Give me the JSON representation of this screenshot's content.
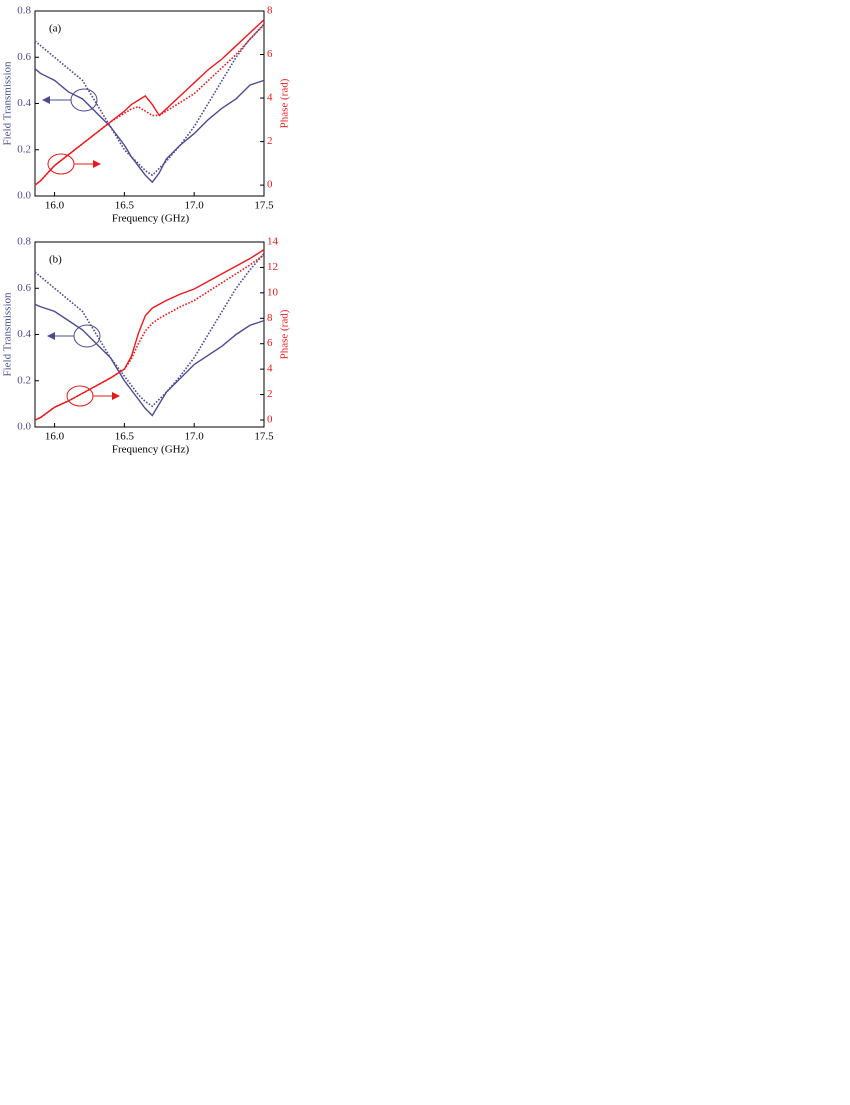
{
  "chart_data": [
    {
      "type": "line",
      "title": "(a)",
      "x_label": "Frequency (GHz)",
      "y_label": "Field Transmission",
      "y2_label": "Phase (rad)",
      "xlim": [
        15.86,
        17.5
      ],
      "xticks": [
        {
          "value": 16,
          "label": "16.0"
        },
        16.5,
        {
          "value": 17,
          "label": "17.0"
        },
        17.5
      ],
      "ylim": [
        0,
        0.8
      ],
      "yticks": [
        {
          "value": 0,
          "label": "0.0"
        },
        0.2,
        0.4,
        0.6,
        0.8
      ],
      "y2lim": [
        -0.5,
        8
      ],
      "y2ticks": [
        0,
        2,
        4,
        6,
        8
      ],
      "x": [
        15.86,
        15.9,
        16.0,
        16.1,
        16.2,
        16.3,
        16.4,
        16.5,
        16.55,
        16.6,
        16.65,
        16.7,
        16.75,
        16.8,
        16.9,
        17.0,
        17.1,
        17.2,
        17.3,
        17.4,
        17.5
      ],
      "series": [
        {
          "color": "#4b4b8f",
          "dash": "solid",
          "values": [
            0.55,
            0.53,
            0.5,
            0.45,
            0.42,
            0.36,
            0.3,
            0.22,
            0.17,
            0.13,
            0.09,
            0.06,
            0.1,
            0.16,
            0.22,
            0.27,
            0.33,
            0.38,
            0.42,
            0.48,
            0.5
          ]
        },
        {
          "color": "#4b4b8f",
          "dash": "dotted",
          "values": [
            0.67,
            0.65,
            0.6,
            0.55,
            0.5,
            0.4,
            0.3,
            0.2,
            0.17,
            0.14,
            0.11,
            0.09,
            0.12,
            0.15,
            0.22,
            0.3,
            0.4,
            0.5,
            0.6,
            0.68,
            0.74
          ]
        },
        {
          "color": "#e8191c",
          "dash": "solid",
          "axis": "y2",
          "values": [
            0,
            0.2,
            0.9,
            1.4,
            1.9,
            2.4,
            2.9,
            3.4,
            3.7,
            3.9,
            4.1,
            3.7,
            3.2,
            3.5,
            4.1,
            4.7,
            5.3,
            5.8,
            6.4,
            7.0,
            7.6
          ]
        },
        {
          "color": "#e8191c",
          "dash": "dotted",
          "axis": "y2",
          "values": [
            0,
            0.2,
            0.9,
            1.4,
            1.9,
            2.4,
            2.9,
            3.3,
            3.5,
            3.6,
            3.4,
            3.2,
            3.2,
            3.4,
            3.8,
            4.2,
            4.8,
            5.4,
            6.0,
            6.7,
            7.4
          ]
        }
      ]
    },
    {
      "type": "line",
      "title": "(b)",
      "x_label": "Frequency (GHz)",
      "y_label": "Field Transmission",
      "y2_label": "Phase (rad)",
      "xlim": [
        15.86,
        17.5
      ],
      "xticks": [
        {
          "value": 16,
          "label": "16.0"
        },
        16.5,
        {
          "value": 17,
          "label": "17.0"
        },
        17.5
      ],
      "ylim": [
        0,
        0.8
      ],
      "yticks": [
        {
          "value": 0,
          "label": "0.0"
        },
        0.2,
        0.4,
        0.6,
        0.8
      ],
      "y2lim": [
        -0.55,
        14
      ],
      "y2ticks": [
        0,
        2,
        4,
        6,
        8,
        10,
        12,
        14
      ],
      "x": [
        15.86,
        15.9,
        16.0,
        16.1,
        16.2,
        16.3,
        16.4,
        16.5,
        16.55,
        16.6,
        16.65,
        16.7,
        16.75,
        16.8,
        16.9,
        17.0,
        17.1,
        17.2,
        17.3,
        17.4,
        17.5
      ],
      "series": [
        {
          "color": "#4b4b8f",
          "dash": "solid",
          "values": [
            0.53,
            0.52,
            0.5,
            0.46,
            0.42,
            0.36,
            0.3,
            0.2,
            0.16,
            0.12,
            0.08,
            0.05,
            0.1,
            0.15,
            0.21,
            0.27,
            0.31,
            0.35,
            0.4,
            0.44,
            0.46
          ]
        },
        {
          "color": "#4b4b8f",
          "dash": "dotted",
          "values": [
            0.67,
            0.65,
            0.6,
            0.55,
            0.5,
            0.4,
            0.3,
            0.22,
            0.18,
            0.14,
            0.11,
            0.09,
            0.12,
            0.15,
            0.22,
            0.3,
            0.4,
            0.5,
            0.6,
            0.68,
            0.75
          ]
        },
        {
          "color": "#e8191c",
          "dash": "solid",
          "axis": "y2",
          "values": [
            0,
            0.2,
            1.0,
            1.5,
            2.1,
            2.7,
            3.3,
            4.0,
            5.0,
            6.8,
            8.2,
            8.8,
            9.1,
            9.4,
            9.9,
            10.3,
            10.9,
            11.5,
            12.1,
            12.7,
            13.4
          ]
        },
        {
          "color": "#e8191c",
          "dash": "dotted",
          "axis": "y2",
          "values": [
            0,
            0.2,
            1.0,
            1.5,
            2.1,
            2.7,
            3.3,
            4.0,
            4.8,
            6.0,
            7.0,
            7.6,
            8.0,
            8.3,
            8.9,
            9.4,
            10.1,
            10.8,
            11.5,
            12.2,
            13.0
          ]
        }
      ]
    }
  ]
}
